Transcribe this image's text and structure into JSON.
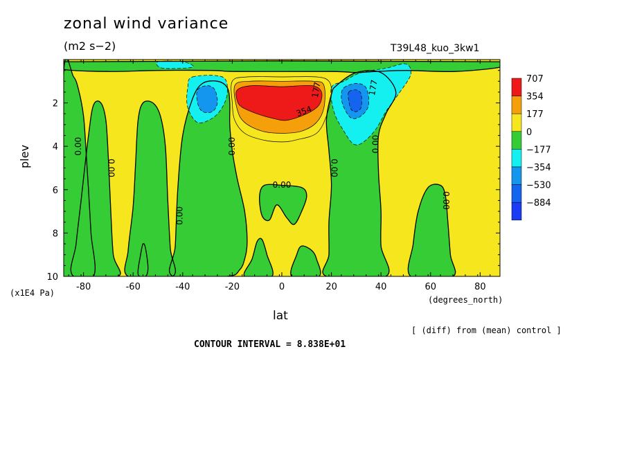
{
  "title": "zonal wind variance",
  "units": "(m2 s−2)",
  "run_name": "T39L48_kuo_3kw1",
  "ylabel": "plev",
  "yunit": "(x1E4 Pa)",
  "xunit": "(degrees_north)",
  "xlabel": "lat",
  "diff_note": "[ (diff) from (mean) control ]",
  "contour_interval": "CONTOUR INTERVAL = 8.838E+01",
  "chart_data": {
    "type": "heatmap",
    "xlim": [
      -88,
      88
    ],
    "ylim": [
      10,
      0
    ],
    "xticks": [
      -80,
      -60,
      -40,
      -20,
      0,
      20,
      40,
      60,
      80
    ],
    "xtick_labels": [
      "-80",
      "-60",
      "-40",
      "-20",
      "0",
      "20",
      "40",
      "60",
      "80"
    ],
    "yticks": [
      2,
      4,
      6,
      8,
      10
    ],
    "ytick_labels": [
      "2",
      "4",
      "6",
      "8",
      "10"
    ],
    "legend_position": "right",
    "legend": [
      {
        "label": "707",
        "color": "#ee1a1a"
      },
      {
        "label": "354",
        "color": "#f5a00a"
      },
      {
        "label": "177",
        "color": "#f5e61e"
      },
      {
        "label": "0",
        "color": "#35cc35"
      },
      {
        "label": "−177",
        "color": "#14f0f0"
      },
      {
        "label": "−354",
        "color": "#1496ee"
      },
      {
        "label": "−530",
        "color": "#1464f0"
      },
      {
        "label": "−884",
        "color": "#1a3cf5"
      }
    ],
    "background_color": "#f5e61e",
    "regions": [
      {
        "level": "0",
        "points": [
          [
            -88,
            0.1
          ],
          [
            88,
            0.1
          ],
          [
            88,
            0.35
          ],
          [
            70,
            0.55
          ],
          [
            50,
            0.5
          ],
          [
            38,
            0.55
          ],
          [
            30,
            0.6
          ],
          [
            20,
            0.55
          ],
          [
            -18,
            0.55
          ],
          [
            -28,
            0.5
          ],
          [
            -50,
            0.5
          ],
          [
            -70,
            0.55
          ],
          [
            -88,
            0.45
          ]
        ]
      },
      {
        "level": "0",
        "points": [
          [
            -88,
            0.6
          ],
          [
            -84,
            0.8
          ],
          [
            -82,
            1.4
          ],
          [
            -80,
            2.6
          ],
          [
            -79,
            4.2
          ],
          [
            -78,
            6.0
          ],
          [
            -77,
            8.0
          ],
          [
            -76,
            10
          ],
          [
            -88,
            10
          ]
        ]
      },
      {
        "level": "0",
        "points": [
          [
            -84,
            10
          ],
          [
            -83,
            8.5
          ],
          [
            -81,
            6.5
          ],
          [
            -78,
            3.5
          ],
          [
            -76,
            2.1
          ],
          [
            -73,
            2.0
          ],
          [
            -71,
            2.8
          ],
          [
            -70,
            4.5
          ],
          [
            -69,
            7.0
          ],
          [
            -68,
            9.0
          ],
          [
            -66,
            10
          ]
        ]
      },
      {
        "level": "0",
        "points": [
          [
            -62,
            10
          ],
          [
            -62,
            8.8
          ],
          [
            -60,
            6.8
          ],
          [
            -59,
            4.8
          ],
          [
            -58,
            2.8
          ],
          [
            -56,
            2.0
          ],
          [
            -52,
            2.0
          ],
          [
            -49,
            2.6
          ],
          [
            -47,
            4.0
          ],
          [
            -46,
            6.5
          ],
          [
            -45,
            8.7
          ],
          [
            -44,
            10
          ]
        ]
      },
      {
        "level": "0",
        "points": [
          [
            -58,
            9.9
          ],
          [
            -57,
            9.0
          ],
          [
            -56,
            8.5
          ],
          [
            -55,
            8.7
          ],
          [
            -54,
            9.6
          ],
          [
            -55,
            10
          ]
        ]
      },
      {
        "level": "0",
        "points": [
          [
            -44,
            10
          ],
          [
            -43,
            8.6
          ],
          [
            -42,
            6.0
          ],
          [
            -40,
            3.5
          ],
          [
            -36,
            1.8
          ],
          [
            -32,
            1.1
          ],
          [
            -26,
            1.0
          ],
          [
            -22,
            1.3
          ],
          [
            -21,
            2.0
          ],
          [
            -21,
            3.0
          ],
          [
            -20,
            4.2
          ],
          [
            -18,
            5.5
          ],
          [
            -15,
            7.0
          ],
          [
            -14,
            8.4
          ],
          [
            -15,
            9.2
          ],
          [
            -17,
            9.7
          ],
          [
            -22,
            10
          ]
        ]
      },
      {
        "level": "0",
        "points": [
          [
            -15,
            10
          ],
          [
            -12,
            9.2
          ],
          [
            -10,
            8.4
          ],
          [
            -8,
            8.3
          ],
          [
            -6,
            9.0
          ],
          [
            -4,
            10
          ]
        ]
      },
      {
        "level": "0",
        "points": [
          [
            -8,
            7.2
          ],
          [
            -9,
            6.3
          ],
          [
            -7,
            5.8
          ],
          [
            0,
            5.8
          ],
          [
            8,
            5.9
          ],
          [
            10,
            6.3
          ],
          [
            8,
            7.0
          ],
          [
            5,
            7.6
          ],
          [
            2,
            7.3
          ],
          [
            -2,
            6.7
          ],
          [
            -5,
            7.4
          ]
        ]
      },
      {
        "level": "0",
        "points": [
          [
            4,
            10
          ],
          [
            6,
            9.0
          ],
          [
            8,
            8.6
          ],
          [
            12,
            8.8
          ],
          [
            14,
            9.2
          ],
          [
            15,
            10
          ]
        ]
      },
      {
        "level": "0",
        "points": [
          [
            18,
            10
          ],
          [
            19,
            9.0
          ],
          [
            19,
            7.5
          ],
          [
            20,
            5.8
          ],
          [
            19,
            4.2
          ],
          [
            18,
            2.8
          ],
          [
            20,
            1.6
          ],
          [
            22,
            1.2
          ],
          [
            30,
            0.6
          ],
          [
            40,
            0.6
          ],
          [
            46,
            1.5
          ],
          [
            42,
            2.5
          ],
          [
            39,
            3.5
          ],
          [
            39,
            5.2
          ],
          [
            40,
            7.0
          ],
          [
            40,
            8.6
          ],
          [
            42,
            10
          ]
        ]
      },
      {
        "level": "0",
        "points": [
          [
            52,
            10
          ],
          [
            53,
            8.5
          ],
          [
            55,
            7.0
          ],
          [
            59,
            5.9
          ],
          [
            64,
            5.8
          ],
          [
            66,
            6.3
          ],
          [
            67,
            7.5
          ],
          [
            68,
            9.0
          ],
          [
            69,
            10
          ]
        ]
      },
      {
        "level": "−177",
        "points": [
          [
            -50,
            0.1
          ],
          [
            -40,
            0.1
          ],
          [
            -36,
            0.35
          ],
          [
            -48,
            0.4
          ]
        ]
      },
      {
        "level": "−177",
        "points": [
          [
            -36,
            0.8
          ],
          [
            -24,
            0.8
          ],
          [
            -22,
            1.5
          ],
          [
            -24,
            2.2
          ],
          [
            -28,
            2.7
          ],
          [
            -34,
            2.9
          ],
          [
            -38,
            2.2
          ],
          [
            -38,
            1.3
          ]
        ]
      },
      {
        "level": "−177",
        "points": [
          [
            20,
            1.3
          ],
          [
            25,
            1.0
          ],
          [
            32,
            0.6
          ],
          [
            42,
            0.4
          ],
          [
            50,
            0.2
          ],
          [
            52,
            0.7
          ],
          [
            47,
            1.6
          ],
          [
            42,
            2.4
          ],
          [
            38,
            3.2
          ],
          [
            33,
            3.8
          ],
          [
            29,
            3.9
          ],
          [
            25,
            3.3
          ],
          [
            21,
            2.4
          ]
        ]
      },
      {
        "level": "−354",
        "points": [
          [
            -34,
            1.4
          ],
          [
            -30,
            1.2
          ],
          [
            -27,
            1.4
          ],
          [
            -26,
            2.0
          ],
          [
            -28,
            2.4
          ],
          [
            -32,
            2.4
          ],
          [
            -34,
            2.0
          ]
        ]
      },
      {
        "level": "−354",
        "points": [
          [
            25,
            1.3
          ],
          [
            30,
            1.1
          ],
          [
            34,
            1.3
          ],
          [
            35,
            2.1
          ],
          [
            32,
            2.6
          ],
          [
            28,
            2.7
          ],
          [
            25,
            2.2
          ],
          [
            24,
            1.7
          ]
        ]
      },
      {
        "level": "−530",
        "points": [
          [
            27,
            1.5
          ],
          [
            30,
            1.4
          ],
          [
            32,
            1.6
          ],
          [
            32,
            2.2
          ],
          [
            30,
            2.4
          ],
          [
            28,
            2.3
          ],
          [
            27,
            1.9
          ]
        ]
      },
      {
        "level": "177",
        "points": [
          [
            -20,
            1.0
          ],
          [
            -14,
            0.8
          ],
          [
            0,
            0.8
          ],
          [
            14,
            0.8
          ],
          [
            19,
            1.0
          ],
          [
            20,
            1.6
          ],
          [
            18,
            2.6
          ],
          [
            14,
            3.4
          ],
          [
            6,
            3.7
          ],
          [
            0,
            3.8
          ],
          [
            -8,
            3.7
          ],
          [
            -15,
            3.4
          ],
          [
            -19,
            2.8
          ],
          [
            -20,
            2.0
          ]
        ]
      },
      {
        "level": "354",
        "points": [
          [
            -19,
            1.2
          ],
          [
            -13,
            1.0
          ],
          [
            0,
            1.0
          ],
          [
            13,
            1.0
          ],
          [
            17,
            1.2
          ],
          [
            17,
            2.2
          ],
          [
            14,
            2.9
          ],
          [
            8,
            3.3
          ],
          [
            0,
            3.4
          ],
          [
            -8,
            3.3
          ],
          [
            -15,
            2.9
          ],
          [
            -18,
            2.3
          ]
        ]
      },
      {
        "level": "707",
        "points": [
          [
            -18,
            1.4
          ],
          [
            -12,
            1.2
          ],
          [
            0,
            1.25
          ],
          [
            12,
            1.2
          ],
          [
            16,
            1.5
          ],
          [
            15,
            2.1
          ],
          [
            10,
            2.5
          ],
          [
            2,
            2.8
          ],
          [
            -4,
            2.7
          ],
          [
            -10,
            2.5
          ],
          [
            -16,
            2.2
          ],
          [
            -18,
            1.9
          ]
        ]
      }
    ],
    "contour_labels": [
      {
        "text": "0.00",
        "x": -82,
        "y": 4.0,
        "rotate": -90
      },
      {
        "text": "0.00",
        "x": -69,
        "y": 5.0,
        "rotate": 90
      },
      {
        "text": "0.00",
        "x": -41,
        "y": 7.2,
        "rotate": -90
      },
      {
        "text": "0.00",
        "x": -20,
        "y": 4.0,
        "rotate": -90
      },
      {
        "text": "0.00",
        "x": 0,
        "y": 5.8,
        "rotate": 0
      },
      {
        "text": "0.00",
        "x": 21,
        "y": 5.0,
        "rotate": 90
      },
      {
        "text": "0.00",
        "x": 38,
        "y": 3.9,
        "rotate": -90
      },
      {
        "text": "0.00",
        "x": 66,
        "y": 6.5,
        "rotate": 90
      },
      {
        "text": "177",
        "x": 37,
        "y": 1.3,
        "rotate": -80
      },
      {
        "text": "177",
        "x": 14,
        "y": 1.4,
        "rotate": -80
      },
      {
        "text": "354",
        "x": 9,
        "y": 2.4,
        "rotate": -20
      }
    ]
  }
}
